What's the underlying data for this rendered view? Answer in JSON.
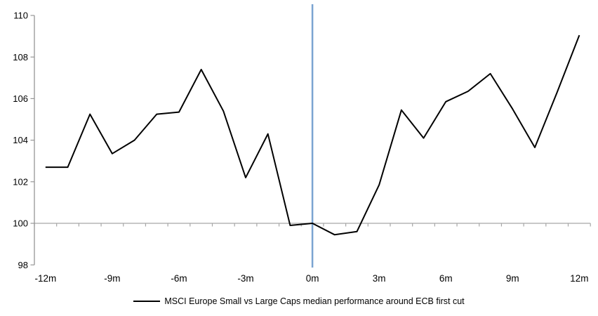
{
  "chart_data": {
    "type": "line",
    "title": "",
    "legend_position": "bottom-center",
    "grid": false,
    "x_axis": {
      "tick_labels": [
        "-12m",
        "-9m",
        "-6m",
        "-3m",
        "0m",
        "3m",
        "6m",
        "9m",
        "12m"
      ],
      "tick_positions": [
        -12,
        -9,
        -6,
        -3,
        0,
        3,
        6,
        9,
        12
      ],
      "xlim": [
        -12.5,
        12.5
      ],
      "crosses_at": 100
    },
    "y_axis": {
      "tick_labels": [
        "98",
        "100",
        "102",
        "104",
        "106",
        "108",
        "110"
      ],
      "tick_values": [
        98,
        100,
        102,
        104,
        106,
        108,
        110
      ],
      "ylim": [
        98,
        110
      ]
    },
    "baseline_value": 100,
    "event_line_x": 0,
    "x": [
      -12,
      -11,
      -10,
      -9,
      -8,
      -7,
      -6,
      -5,
      -4,
      -3,
      -2,
      -1,
      0,
      1,
      2,
      3,
      4,
      5,
      6,
      7,
      8,
      9,
      10,
      11,
      12
    ],
    "series": [
      {
        "name": "MSCI Europe Small vs Large Caps median performance around ECB first cut",
        "values": [
          102.7,
          102.7,
          105.25,
          103.35,
          104.0,
          105.25,
          105.35,
          107.4,
          105.4,
          102.2,
          104.3,
          99.9,
          100.0,
          99.45,
          99.6,
          101.85,
          105.45,
          104.1,
          105.85,
          106.35,
          107.2,
          105.5,
          103.65,
          106.3,
          109.05
        ]
      }
    ],
    "colors": {
      "series_line": "#000000",
      "event_line": "#7AA4D1",
      "category_axis_line": "#A6A6A6",
      "value_axis_line": "#969696",
      "text": "#000000"
    }
  }
}
